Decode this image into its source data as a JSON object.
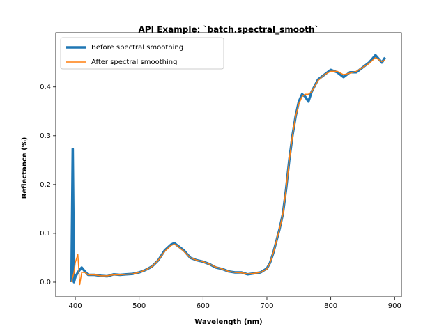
{
  "chart_data": {
    "type": "line",
    "title": "API Example: `batch.spectral_smooth`",
    "xlabel": "Wavelength (nm)",
    "ylabel": "Reflectance (%)",
    "x": [
      394,
      396,
      398,
      400,
      404,
      407,
      410,
      415,
      420,
      430,
      440,
      450,
      460,
      470,
      480,
      490,
      500,
      510,
      520,
      530,
      540,
      550,
      555,
      560,
      570,
      580,
      590,
      600,
      610,
      620,
      630,
      640,
      650,
      660,
      670,
      680,
      690,
      700,
      705,
      710,
      715,
      720,
      725,
      730,
      735,
      740,
      745,
      750,
      755,
      760,
      765,
      770,
      780,
      790,
      800,
      810,
      820,
      830,
      840,
      850,
      860,
      870,
      880,
      885
    ],
    "series": [
      {
        "name": "Before spectral smoothing",
        "color": "#1f77b4",
        "width": 3.5,
        "values": [
          0.0,
          0.273,
          0.0,
          0.01,
          0.02,
          0.025,
          0.03,
          0.022,
          0.015,
          0.015,
          0.013,
          0.012,
          0.016,
          0.015,
          0.016,
          0.017,
          0.02,
          0.025,
          0.032,
          0.045,
          0.065,
          0.077,
          0.08,
          0.075,
          0.065,
          0.05,
          0.045,
          0.042,
          0.037,
          0.03,
          0.027,
          0.022,
          0.02,
          0.02,
          0.016,
          0.018,
          0.02,
          0.028,
          0.04,
          0.06,
          0.085,
          0.11,
          0.14,
          0.19,
          0.25,
          0.3,
          0.34,
          0.37,
          0.385,
          0.38,
          0.37,
          0.39,
          0.415,
          0.425,
          0.435,
          0.43,
          0.42,
          0.43,
          0.43,
          0.44,
          0.45,
          0.465,
          0.45,
          0.46
        ]
      },
      {
        "name": "After spectral smoothing",
        "color": "#ff7f0e",
        "width": 1.5,
        "values": [
          0.0,
          0.01,
          0.02,
          0.04,
          0.057,
          -0.005,
          0.02,
          0.02,
          0.015,
          0.015,
          0.013,
          0.013,
          0.015,
          0.015,
          0.016,
          0.017,
          0.02,
          0.025,
          0.032,
          0.045,
          0.063,
          0.075,
          0.078,
          0.074,
          0.063,
          0.05,
          0.045,
          0.042,
          0.037,
          0.031,
          0.027,
          0.022,
          0.02,
          0.019,
          0.017,
          0.018,
          0.02,
          0.027,
          0.04,
          0.06,
          0.085,
          0.11,
          0.14,
          0.19,
          0.25,
          0.3,
          0.34,
          0.365,
          0.38,
          0.385,
          0.385,
          0.39,
          0.413,
          0.425,
          0.432,
          0.432,
          0.425,
          0.428,
          0.432,
          0.44,
          0.448,
          0.46,
          0.452,
          0.455
        ]
      }
    ],
    "xlim": [
      369.4,
      910.6
    ],
    "ylim": [
      -0.03,
      0.511
    ],
    "xticks": [
      400,
      500,
      600,
      700,
      800,
      900
    ],
    "yticks": [
      {
        "value": 0,
        "label": "0.0"
      },
      {
        "value": 0.1,
        "label": "0.1"
      },
      {
        "value": 0.2,
        "label": "0.2"
      },
      {
        "value": 0.3,
        "label": "0.3"
      },
      {
        "value": 0.4,
        "label": "0.4"
      }
    ],
    "legend": "upper left",
    "grid": false
  }
}
